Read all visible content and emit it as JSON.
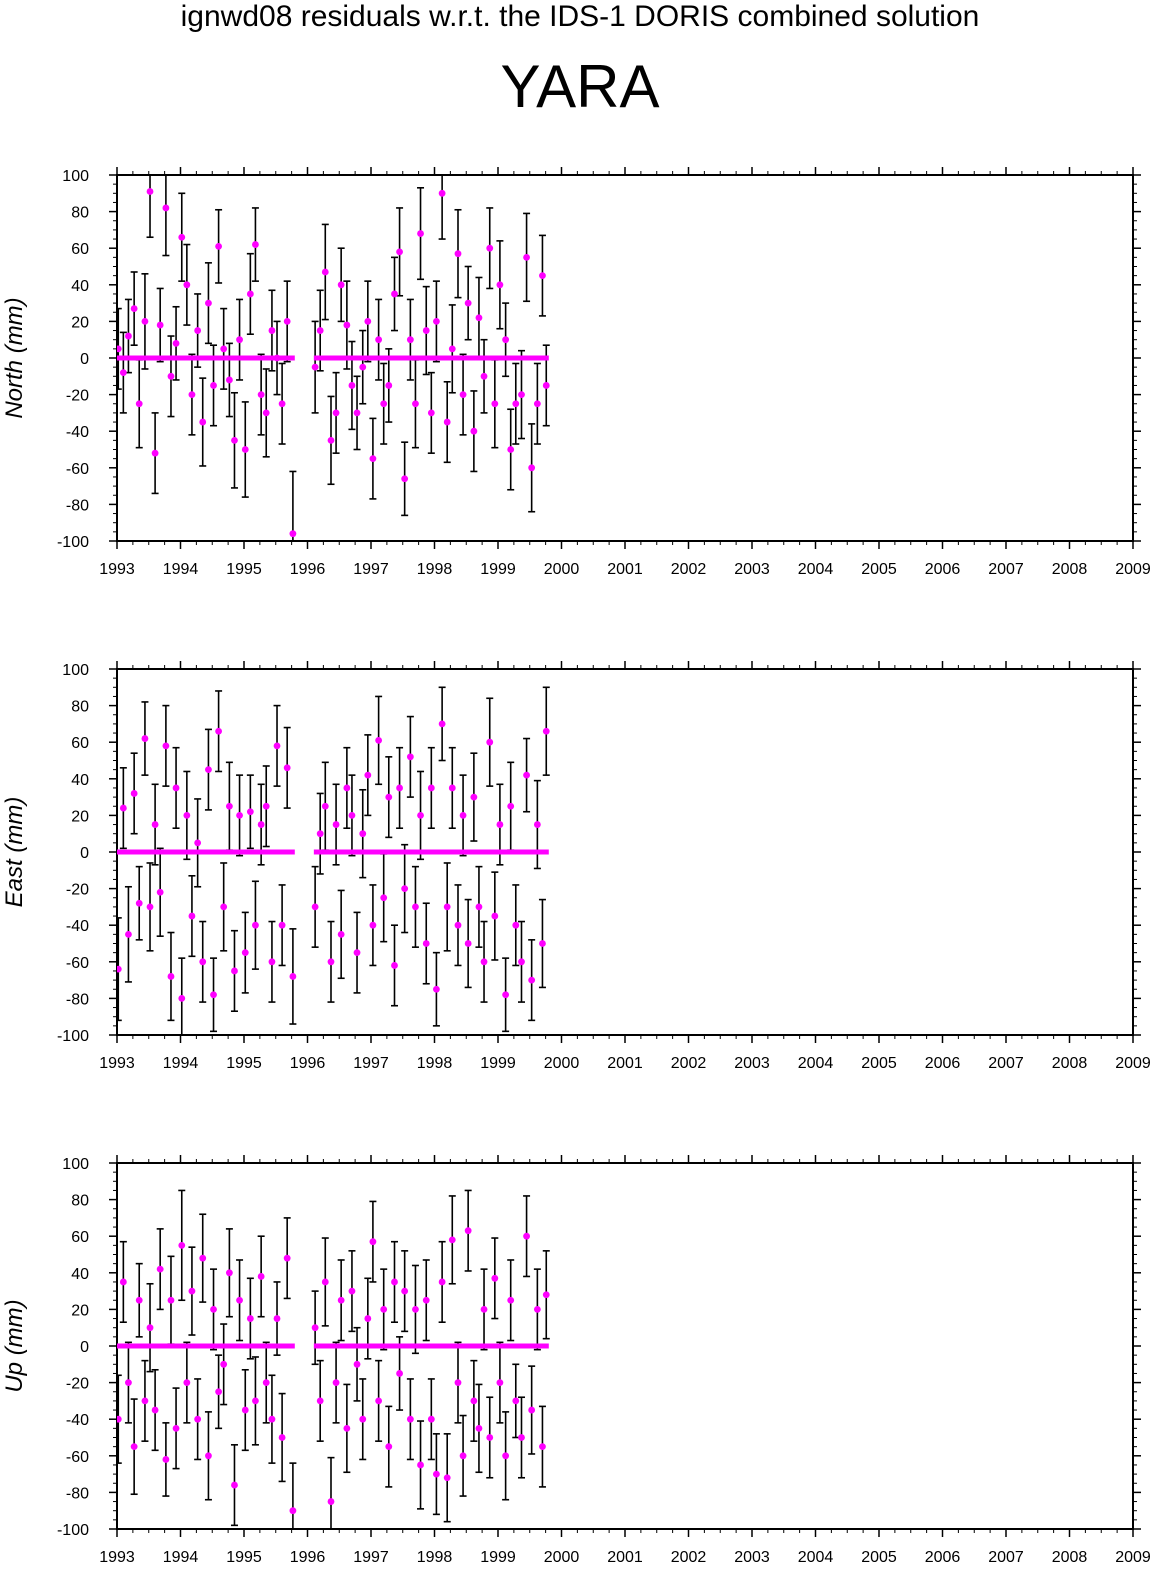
{
  "header": {
    "title": "ignwd08 residuals w.r.t. the IDS-1 DORIS combined solution",
    "station": "YARA"
  },
  "style": {
    "marker_color": "#ff00ff",
    "errorbar_color": "#000000",
    "frame_color": "#000000"
  },
  "chart_data": [
    {
      "type": "scatter",
      "ylabel": "North (mm)",
      "xlim": [
        1993,
        2009
      ],
      "ylim": [
        -100,
        100
      ],
      "x_ticks": [
        "1993",
        "1994",
        "1995",
        "1996",
        "1997",
        "1998",
        "1999",
        "2000",
        "2001",
        "2002",
        "2003",
        "2004",
        "2005",
        "2006",
        "2007",
        "2008",
        "2009"
      ],
      "y_ticks": [
        "100",
        "80",
        "60",
        "40",
        "20",
        "0",
        "-20",
        "-40",
        "-60",
        "-80",
        "-100"
      ],
      "grid": false,
      "reference_segments": [
        {
          "x": [
            1993.0,
            1995.8
          ],
          "y": 0
        },
        {
          "x": [
            1996.1,
            1999.8
          ],
          "y": 0
        }
      ],
      "series": [
        {
          "x": [
            1993.02,
            1993.1,
            1993.18,
            1993.27,
            1993.35,
            1993.44,
            1993.52,
            1993.6,
            1993.68,
            1993.77,
            1993.85,
            1993.93,
            1994.02,
            1994.1,
            1994.18,
            1994.27,
            1994.35,
            1994.44,
            1994.52,
            1994.6,
            1994.68,
            1994.77,
            1994.85,
            1994.93,
            1995.02,
            1995.1,
            1995.18,
            1995.27,
            1995.35,
            1995.44,
            1995.52,
            1995.6,
            1995.68,
            1995.77,
            1996.12,
            1996.2,
            1996.28,
            1996.37,
            1996.45,
            1996.53,
            1996.62,
            1996.7,
            1996.78,
            1996.87,
            1996.95,
            1997.03,
            1997.12,
            1997.2,
            1997.28,
            1997.37,
            1997.45,
            1997.53,
            1997.62,
            1997.7,
            1997.78,
            1997.87,
            1997.95,
            1998.03,
            1998.12,
            1998.2,
            1998.28,
            1998.37,
            1998.45,
            1998.53,
            1998.62,
            1998.7,
            1998.78,
            1998.87,
            1998.95,
            1999.03,
            1999.12,
            1999.2,
            1999.28,
            1999.37,
            1999.45,
            1999.53,
            1999.62,
            1999.7,
            1999.76
          ],
          "y": [
            5,
            -8,
            12,
            27,
            -25,
            20,
            91,
            -52,
            18,
            82,
            -10,
            8,
            66,
            40,
            -20,
            15,
            -35,
            30,
            -15,
            61,
            5,
            -12,
            -45,
            10,
            -50,
            35,
            62,
            -20,
            -30,
            15,
            0,
            -25,
            20,
            -96,
            -5,
            15,
            47,
            -45,
            -30,
            40,
            18,
            -15,
            -30,
            -5,
            20,
            -55,
            10,
            -25,
            -15,
            35,
            58,
            -66,
            10,
            -25,
            68,
            15,
            -30,
            20,
            90,
            -35,
            5,
            57,
            -20,
            30,
            -40,
            22,
            -10,
            60,
            -25,
            40,
            10,
            -50,
            -25,
            -20,
            55,
            -60,
            -25,
            45,
            -15
          ],
          "err": [
            22,
            22,
            20,
            20,
            24,
            26,
            25,
            22,
            20,
            26,
            22,
            20,
            24,
            22,
            22,
            20,
            24,
            22,
            22,
            20,
            22,
            20,
            26,
            22,
            26,
            22,
            20,
            22,
            24,
            22,
            20,
            22,
            22,
            34,
            25,
            22,
            26,
            24,
            22,
            20,
            24,
            24,
            20,
            20,
            22,
            22,
            22,
            22,
            20,
            20,
            24,
            20,
            22,
            24,
            25,
            24,
            22,
            22,
            25,
            22,
            24,
            24,
            22,
            20,
            22,
            22,
            20,
            22,
            24,
            24,
            20,
            22,
            22,
            24,
            24,
            24,
            22,
            22,
            22
          ]
        }
      ]
    },
    {
      "type": "scatter",
      "ylabel": "East (mm)",
      "xlim": [
        1993,
        2009
      ],
      "ylim": [
        -100,
        100
      ],
      "x_ticks": [
        "1993",
        "1994",
        "1995",
        "1996",
        "1997",
        "1998",
        "1999",
        "2000",
        "2001",
        "2002",
        "2003",
        "2004",
        "2005",
        "2006",
        "2007",
        "2008",
        "2009"
      ],
      "y_ticks": [
        "100",
        "80",
        "60",
        "40",
        "20",
        "0",
        "-20",
        "-40",
        "-60",
        "-80",
        "-100"
      ],
      "grid": false,
      "reference_segments": [
        {
          "x": [
            1993.0,
            1995.8
          ],
          "y": 0
        },
        {
          "x": [
            1996.1,
            1999.8
          ],
          "y": 0
        }
      ],
      "series": [
        {
          "x": [
            1993.02,
            1993.1,
            1993.18,
            1993.27,
            1993.35,
            1993.44,
            1993.52,
            1993.6,
            1993.68,
            1993.77,
            1993.85,
            1993.93,
            1994.02,
            1994.1,
            1994.18,
            1994.27,
            1994.35,
            1994.44,
            1994.52,
            1994.6,
            1994.68,
            1994.77,
            1994.85,
            1994.93,
            1995.02,
            1995.1,
            1995.18,
            1995.27,
            1995.35,
            1995.44,
            1995.52,
            1995.6,
            1995.68,
            1995.77,
            1996.12,
            1996.2,
            1996.28,
            1996.37,
            1996.45,
            1996.53,
            1996.62,
            1996.7,
            1996.78,
            1996.87,
            1996.95,
            1997.03,
            1997.12,
            1997.2,
            1997.28,
            1997.37,
            1997.45,
            1997.53,
            1997.62,
            1997.7,
            1997.78,
            1997.87,
            1997.95,
            1998.03,
            1998.12,
            1998.2,
            1998.28,
            1998.37,
            1998.45,
            1998.53,
            1998.62,
            1998.7,
            1998.78,
            1998.87,
            1998.95,
            1999.03,
            1999.12,
            1999.2,
            1999.28,
            1999.37,
            1999.45,
            1999.53,
            1999.62,
            1999.7,
            1999.76
          ],
          "y": [
            -64,
            24,
            -45,
            32,
            -28,
            62,
            -30,
            15,
            -22,
            58,
            -68,
            35,
            -80,
            20,
            -35,
            5,
            -60,
            45,
            -78,
            66,
            -30,
            25,
            -65,
            20,
            -55,
            22,
            -40,
            15,
            25,
            -60,
            58,
            -40,
            46,
            -68,
            -30,
            10,
            25,
            -60,
            15,
            -45,
            35,
            20,
            -55,
            10,
            42,
            -40,
            61,
            -25,
            30,
            -62,
            35,
            -20,
            52,
            -30,
            20,
            -50,
            35,
            -75,
            70,
            -30,
            35,
            -40,
            20,
            -50,
            30,
            -30,
            -60,
            60,
            -35,
            15,
            -78,
            25,
            -40,
            -60,
            42,
            -70,
            15,
            -50,
            66
          ],
          "err": [
            28,
            22,
            26,
            22,
            20,
            20,
            24,
            22,
            24,
            22,
            24,
            22,
            22,
            24,
            22,
            24,
            22,
            22,
            20,
            22,
            24,
            24,
            22,
            22,
            22,
            20,
            24,
            22,
            22,
            22,
            22,
            22,
            22,
            26,
            22,
            22,
            24,
            22,
            22,
            24,
            22,
            22,
            22,
            24,
            22,
            22,
            24,
            24,
            22,
            22,
            22,
            24,
            22,
            22,
            24,
            22,
            22,
            20,
            20,
            24,
            22,
            22,
            22,
            24,
            24,
            22,
            22,
            24,
            24,
            22,
            20,
            24,
            22,
            22,
            20,
            22,
            24,
            24,
            24
          ]
        }
      ]
    },
    {
      "type": "scatter",
      "ylabel": "Up (mm)",
      "xlim": [
        1993,
        2009
      ],
      "ylim": [
        -100,
        100
      ],
      "x_ticks": [
        "1993",
        "1994",
        "1995",
        "1996",
        "1997",
        "1998",
        "1999",
        "2000",
        "2001",
        "2002",
        "2003",
        "2004",
        "2005",
        "2006",
        "2007",
        "2008",
        "2009"
      ],
      "y_ticks": [
        "100",
        "80",
        "60",
        "40",
        "20",
        "0",
        "-20",
        "-40",
        "-60",
        "-80",
        "-100"
      ],
      "grid": false,
      "reference_segments": [
        {
          "x": [
            1993.0,
            1995.8
          ],
          "y": 0
        },
        {
          "x": [
            1996.1,
            1999.8
          ],
          "y": 0
        }
      ],
      "series": [
        {
          "x": [
            1993.02,
            1993.1,
            1993.18,
            1993.27,
            1993.35,
            1993.44,
            1993.52,
            1993.6,
            1993.68,
            1993.77,
            1993.85,
            1993.93,
            1994.02,
            1994.1,
            1994.18,
            1994.27,
            1994.35,
            1994.44,
            1994.52,
            1994.6,
            1994.68,
            1994.77,
            1994.85,
            1994.93,
            1995.02,
            1995.1,
            1995.18,
            1995.27,
            1995.35,
            1995.44,
            1995.52,
            1995.6,
            1995.68,
            1995.77,
            1996.12,
            1996.2,
            1996.28,
            1996.37,
            1996.45,
            1996.53,
            1996.62,
            1996.7,
            1996.78,
            1996.87,
            1996.95,
            1997.03,
            1997.12,
            1997.2,
            1997.28,
            1997.37,
            1997.45,
            1997.53,
            1997.62,
            1997.7,
            1997.78,
            1997.87,
            1997.95,
            1998.03,
            1998.12,
            1998.2,
            1998.28,
            1998.37,
            1998.45,
            1998.53,
            1998.62,
            1998.7,
            1998.78,
            1998.87,
            1998.95,
            1999.03,
            1999.12,
            1999.2,
            1999.28,
            1999.37,
            1999.45,
            1999.53,
            1999.62,
            1999.7,
            1999.76
          ],
          "y": [
            -40,
            35,
            -20,
            -55,
            25,
            -30,
            10,
            -35,
            42,
            -62,
            25,
            -45,
            55,
            -20,
            30,
            -40,
            48,
            -60,
            20,
            -25,
            -10,
            40,
            -76,
            25,
            -35,
            15,
            -30,
            38,
            -20,
            -40,
            15,
            -50,
            48,
            -90,
            10,
            -30,
            35,
            -85,
            -20,
            25,
            -45,
            30,
            -10,
            -40,
            15,
            57,
            -30,
            20,
            -55,
            35,
            -15,
            30,
            -40,
            20,
            -65,
            25,
            -40,
            -70,
            35,
            -72,
            58,
            -20,
            -60,
            63,
            -30,
            -45,
            20,
            -50,
            37,
            -20,
            -60,
            25,
            -30,
            -50,
            60,
            -35,
            20,
            -55,
            28
          ],
          "err": [
            24,
            22,
            22,
            26,
            20,
            22,
            24,
            22,
            22,
            20,
            24,
            22,
            30,
            22,
            24,
            22,
            24,
            24,
            22,
            20,
            22,
            24,
            22,
            22,
            22,
            22,
            24,
            22,
            22,
            24,
            20,
            24,
            22,
            26,
            20,
            22,
            24,
            24,
            22,
            22,
            24,
            22,
            20,
            22,
            22,
            22,
            22,
            22,
            22,
            22,
            20,
            22,
            22,
            24,
            24,
            22,
            22,
            22,
            22,
            24,
            24,
            22,
            22,
            22,
            22,
            24,
            22,
            22,
            22,
            22,
            24,
            22,
            20,
            22,
            22,
            24,
            22,
            22,
            24
          ]
        }
      ]
    }
  ]
}
